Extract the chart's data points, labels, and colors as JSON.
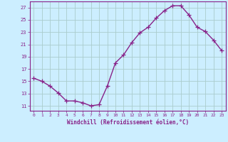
{
  "x": [
    0,
    1,
    2,
    3,
    4,
    5,
    6,
    7,
    8,
    9,
    10,
    11,
    12,
    13,
    14,
    15,
    16,
    17,
    18,
    19,
    20,
    21,
    22,
    23
  ],
  "y": [
    15.5,
    15.0,
    14.2,
    13.1,
    11.8,
    11.8,
    11.5,
    11.0,
    11.2,
    14.2,
    18.0,
    19.3,
    21.3,
    22.9,
    23.8,
    25.3,
    26.5,
    27.3,
    27.3,
    25.8,
    23.8,
    23.1,
    21.7,
    20.0
  ],
  "color": "#882288",
  "bg_color": "#cceeff",
  "grid_color": "#aacccc",
  "xlabel": "Windchill (Refroidissement éolien,°C)",
  "yticks": [
    11,
    13,
    15,
    17,
    19,
    21,
    23,
    25,
    27
  ],
  "xticks": [
    0,
    1,
    2,
    3,
    4,
    5,
    6,
    7,
    8,
    9,
    10,
    11,
    12,
    13,
    14,
    15,
    16,
    17,
    18,
    19,
    20,
    21,
    22,
    23
  ],
  "ylim": [
    10.2,
    28.0
  ],
  "xlim": [
    -0.5,
    23.5
  ],
  "marker": "+",
  "markersize": 4,
  "linewidth": 1.0
}
